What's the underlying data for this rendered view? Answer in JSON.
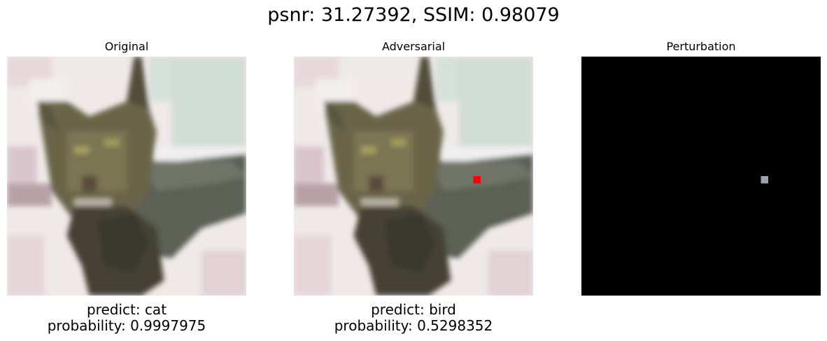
{
  "suptitle": "psnr: 31.27392, SSIM: 0.98079",
  "panels": [
    {
      "title": "Original",
      "predict": "predict: cat",
      "probability": "probability: 0.9997975"
    },
    {
      "title": "Adversarial",
      "predict": "predict: bird",
      "probability": "probability: 0.5298352"
    },
    {
      "title": "Perturbation",
      "predict": "",
      "probability": ""
    }
  ],
  "colors": {
    "perturbed_pixel": "#ff0000",
    "perturbation_background": "#000000",
    "perturbation_pixel": "#9aa3b4"
  },
  "image_content": "pixelated-tabby-cat-on-bed"
}
